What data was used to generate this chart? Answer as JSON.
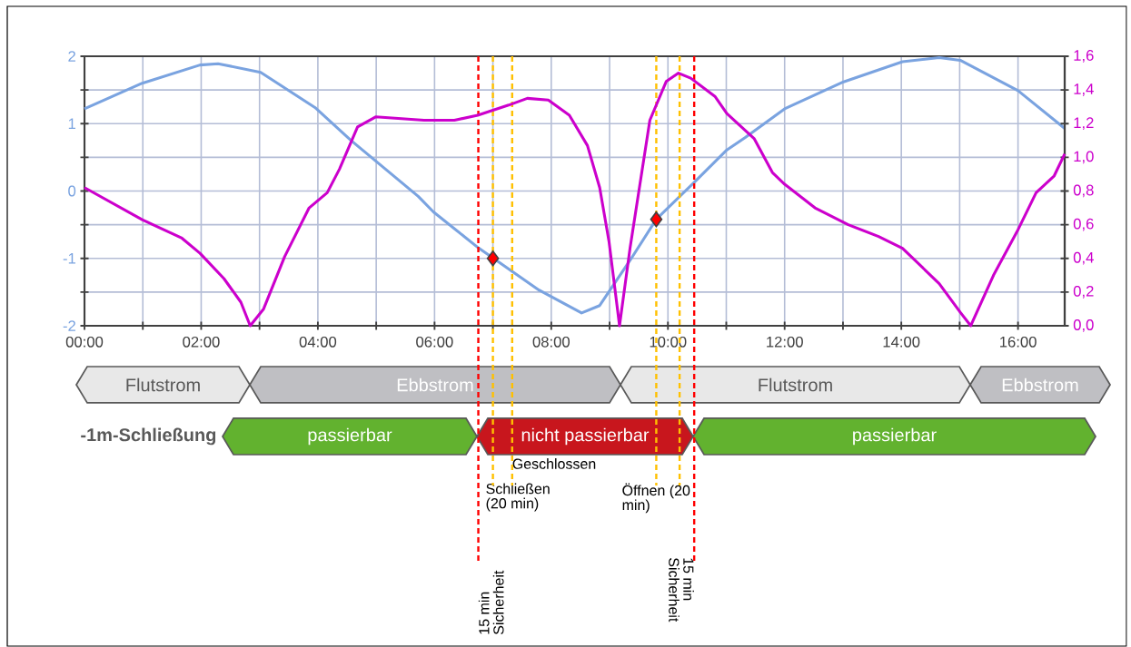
{
  "chart_data": {
    "type": "line",
    "xlim": [
      0,
      16.8
    ],
    "xticks": [
      {
        "value": 0,
        "label": "00:00"
      },
      {
        "value": 1,
        "label": null
      },
      {
        "value": 2,
        "label": "02:00"
      },
      {
        "value": 3,
        "label": null
      },
      {
        "value": 4,
        "label": "04:00"
      },
      {
        "value": 5,
        "label": null
      },
      {
        "value": 6,
        "label": "06:00"
      },
      {
        "value": 7,
        "label": null
      },
      {
        "value": 8,
        "label": "08:00"
      },
      {
        "value": 9,
        "label": null
      },
      {
        "value": 10,
        "label": "10:00"
      },
      {
        "value": 11,
        "label": null
      },
      {
        "value": 12,
        "label": "12:00"
      },
      {
        "value": 13,
        "label": null
      },
      {
        "value": 14,
        "label": "14:00"
      },
      {
        "value": 15,
        "label": null
      },
      {
        "value": 16,
        "label": "16:00"
      }
    ],
    "ylim": [
      -2,
      2
    ],
    "yticks": [
      -2,
      {
        "value": -1.5,
        "label": null
      },
      -1,
      {
        "value": -0.5,
        "label": null
      },
      0,
      {
        "value": 0.5,
        "label": null
      },
      1,
      {
        "value": 1.5,
        "label": null
      },
      2
    ],
    "y2lim": [
      0,
      1.6
    ],
    "y2ticks": [
      {
        "value": 0,
        "label": "0,0"
      },
      {
        "value": 0.2,
        "label": "0,2"
      },
      {
        "value": 0.4,
        "label": "0,4"
      },
      {
        "value": 0.6,
        "label": "0,6"
      },
      {
        "value": 0.8,
        "label": "0,8"
      },
      {
        "value": 1.0,
        "label": "1,0"
      },
      {
        "value": 1.2,
        "label": "1,2"
      },
      {
        "value": 1.4,
        "label": "1,4"
      },
      {
        "value": 1.6,
        "label": "1,6"
      }
    ],
    "grid": true,
    "series": [
      {
        "color": "#7aa3e0",
        "x": [
          0,
          0.99,
          1.98,
          2.29,
          3.02,
          3.95,
          4.57,
          5.72,
          5.98,
          6.76,
          7.79,
          8.52,
          8.83,
          9.35,
          9.8,
          10.44,
          11.01,
          11.32,
          12.0,
          13.01,
          14.02,
          14.65,
          15.01,
          16.0,
          16.8
        ],
        "values": [
          1.22,
          1.6,
          1.87,
          1.89,
          1.76,
          1.24,
          0.75,
          -0.08,
          -0.31,
          -0.85,
          -1.47,
          -1.81,
          -1.7,
          -1.03,
          -0.42,
          0.12,
          0.61,
          0.79,
          1.22,
          1.62,
          1.92,
          1.98,
          1.94,
          1.49,
          0.93
        ]
      },
      {
        "color": "#cc00cc",
        "axis": "y2",
        "x": [
          0,
          0.99,
          1.67,
          1.98,
          2.39,
          2.68,
          2.84,
          3.07,
          3.43,
          3.85,
          4.16,
          4.37,
          4.68,
          4.99,
          5.82,
          6.34,
          6.74,
          7.27,
          7.59,
          7.95,
          8.31,
          8.62,
          8.83,
          8.99,
          9.17,
          9.35,
          9.69,
          9.97,
          10.18,
          10.39,
          10.81,
          11.01,
          11.48,
          11.79,
          12.0,
          12.52,
          13.09,
          13.61,
          14.02,
          14.65,
          15.01,
          15.19,
          15.58,
          16.0,
          16.31,
          16.62,
          16.8
        ],
        "values": [
          0.82,
          0.63,
          0.52,
          0.43,
          0.28,
          0.14,
          0.0,
          0.1,
          0.41,
          0.7,
          0.79,
          0.93,
          1.18,
          1.24,
          1.22,
          1.22,
          1.25,
          1.31,
          1.35,
          1.34,
          1.25,
          1.07,
          0.82,
          0.5,
          0.0,
          0.46,
          1.22,
          1.45,
          1.5,
          1.47,
          1.36,
          1.26,
          1.11,
          0.91,
          0.84,
          0.7,
          0.6,
          0.53,
          0.46,
          0.25,
          0.08,
          0.0,
          0.3,
          0.57,
          0.79,
          0.89,
          1.02
        ]
      },
      {
        "type": "scatter",
        "marker": "diamond",
        "color": "#ff0000",
        "x": [
          7.0,
          9.8
        ],
        "values": [
          -1.0,
          -0.42
        ]
      }
    ],
    "ref_lines": [
      {
        "axis": "x",
        "value": 6.75,
        "label": "15 min Sicherheit",
        "color": "#ff0000",
        "line_style": "dashed"
      },
      {
        "axis": "x",
        "value": 7.0,
        "color": "#ffc000",
        "line_style": "dashed"
      },
      {
        "axis": "x",
        "value": 7.33,
        "color": "#ffc000",
        "line_style": "dashed"
      },
      {
        "axis": "x",
        "value": 9.8,
        "color": "#ffc000",
        "line_style": "dashed"
      },
      {
        "axis": "x",
        "value": 10.2,
        "color": "#ffc000",
        "line_style": "dashed"
      },
      {
        "axis": "x",
        "value": 10.45,
        "label": "15 min Sicherheit",
        "color": "#ff0000",
        "line_style": "dashed"
      }
    ],
    "annotations": [
      "Flutstrom",
      "Ebbstrom",
      "Flutstrom",
      "Ebbstrom",
      "-1m-Schließung",
      "passierbar",
      "nicht passierbar",
      "passierbar",
      "Geschlossen",
      "Schließen (20 min)",
      "Öffnen (20 min)"
    ]
  }
}
